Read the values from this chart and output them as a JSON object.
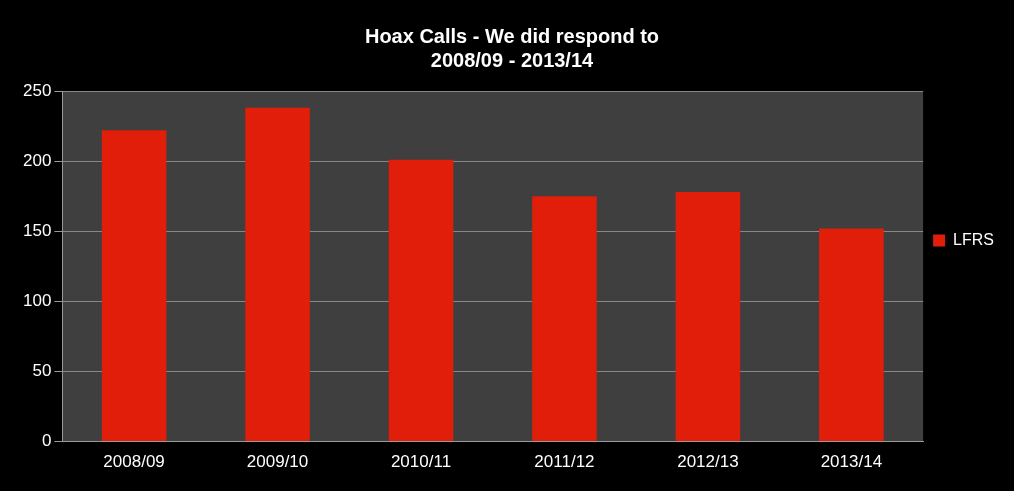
{
  "chart_data": {
    "type": "bar",
    "title": "Hoax Calls - We did respond to\n2008/09 - 2013/14",
    "categories": [
      "2008/09",
      "2009/10",
      "2010/11",
      "2011/12",
      "2012/13",
      "2013/14"
    ],
    "series": [
      {
        "name": "LFRS",
        "color": "#e01e0a",
        "values": [
          222,
          238,
          201,
          175,
          178,
          152
        ]
      }
    ],
    "ylim": [
      0,
      250
    ],
    "yticks": [
      0,
      50,
      100,
      150,
      200,
      250
    ],
    "grid": "y",
    "legend": "right"
  }
}
